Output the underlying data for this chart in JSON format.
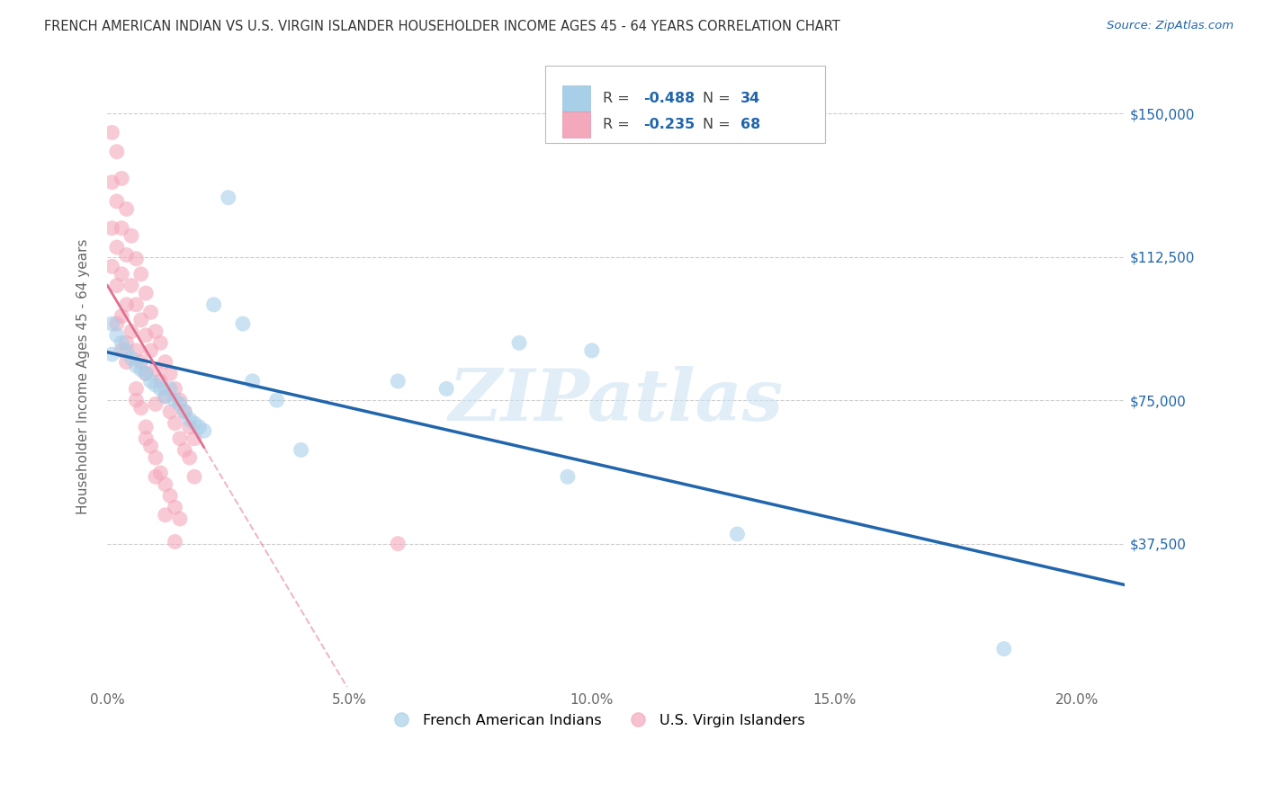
{
  "title": "FRENCH AMERICAN INDIAN VS U.S. VIRGIN ISLANDER HOUSEHOLDER INCOME AGES 45 - 64 YEARS CORRELATION CHART",
  "source": "Source: ZipAtlas.com",
  "xlabel_ticks": [
    "0.0%",
    "5.0%",
    "10.0%",
    "15.0%",
    "20.0%"
  ],
  "xlabel_vals": [
    0.0,
    0.05,
    0.1,
    0.15,
    0.2
  ],
  "ylabel": "Householder Income Ages 45 - 64 years",
  "ylabel_ticks_labels": [
    "$37,500",
    "$75,000",
    "$112,500",
    "$150,000"
  ],
  "ylabel_ticks_vals": [
    37500,
    75000,
    112500,
    150000
  ],
  "ylim_max": 162500,
  "xlim_max": 0.21,
  "r_blue": "-0.488",
  "n_blue": "34",
  "r_pink": "-0.235",
  "n_pink": "68",
  "legend_label_blue": "French American Indians",
  "legend_label_pink": "U.S. Virgin Islanders",
  "blue_color": "#a8cfe8",
  "pink_color": "#f4a8bc",
  "blue_line_color": "#2166ac",
  "pink_line_color": "#e07090",
  "accent_color": "#2166ac",
  "watermark": "ZIPatlas",
  "background_color": "#ffffff",
  "grid_color": "#cccccc",
  "blue_scatter_x": [
    0.001,
    0.001,
    0.002,
    0.003,
    0.004,
    0.005,
    0.006,
    0.007,
    0.008,
    0.009,
    0.01,
    0.011,
    0.012,
    0.013,
    0.014,
    0.015,
    0.016,
    0.017,
    0.018,
    0.019,
    0.02,
    0.022,
    0.025,
    0.028,
    0.03,
    0.035,
    0.04,
    0.06,
    0.07,
    0.085,
    0.095,
    0.1,
    0.13,
    0.185
  ],
  "blue_scatter_y": [
    95000,
    87000,
    92000,
    90000,
    88000,
    86000,
    84000,
    83000,
    82000,
    80000,
    79000,
    78000,
    76000,
    78000,
    75000,
    74000,
    72000,
    70000,
    69000,
    68000,
    67000,
    100000,
    128000,
    95000,
    80000,
    75000,
    62000,
    80000,
    78000,
    90000,
    55000,
    88000,
    40000,
    10000
  ],
  "pink_scatter_x": [
    0.001,
    0.001,
    0.001,
    0.001,
    0.002,
    0.002,
    0.002,
    0.002,
    0.003,
    0.003,
    0.003,
    0.003,
    0.003,
    0.004,
    0.004,
    0.004,
    0.004,
    0.005,
    0.005,
    0.005,
    0.006,
    0.006,
    0.006,
    0.007,
    0.007,
    0.007,
    0.008,
    0.008,
    0.008,
    0.009,
    0.009,
    0.01,
    0.01,
    0.01,
    0.011,
    0.011,
    0.012,
    0.012,
    0.013,
    0.013,
    0.014,
    0.014,
    0.015,
    0.015,
    0.016,
    0.016,
    0.017,
    0.017,
    0.018,
    0.018,
    0.006,
    0.007,
    0.008,
    0.009,
    0.01,
    0.011,
    0.012,
    0.013,
    0.014,
    0.015,
    0.002,
    0.004,
    0.006,
    0.008,
    0.01,
    0.012,
    0.06,
    0.014
  ],
  "pink_scatter_y": [
    145000,
    132000,
    120000,
    110000,
    140000,
    127000,
    115000,
    105000,
    133000,
    120000,
    108000,
    97000,
    88000,
    125000,
    113000,
    100000,
    90000,
    118000,
    105000,
    93000,
    112000,
    100000,
    88000,
    108000,
    96000,
    85000,
    103000,
    92000,
    82000,
    98000,
    88000,
    93000,
    83000,
    74000,
    90000,
    80000,
    85000,
    76000,
    82000,
    72000,
    78000,
    69000,
    75000,
    65000,
    72000,
    62000,
    68000,
    60000,
    65000,
    55000,
    78000,
    73000,
    68000,
    63000,
    60000,
    56000,
    53000,
    50000,
    47000,
    44000,
    95000,
    85000,
    75000,
    65000,
    55000,
    45000,
    37500,
    38000
  ]
}
